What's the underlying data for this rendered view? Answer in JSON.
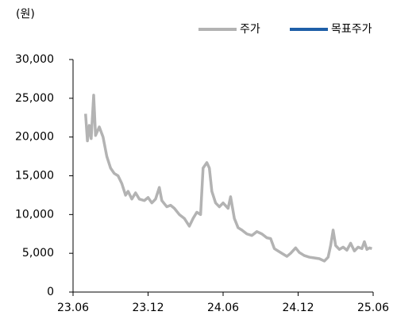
{
  "chart_data": {
    "type": "line",
    "unit_label": "(원)",
    "x": [
      1,
      1.15,
      1.3,
      1.45,
      1.65,
      1.8,
      2.1,
      2.4,
      2.7,
      3.0,
      3.3,
      3.6,
      3.9,
      4.2,
      4.4,
      4.7,
      5.0,
      5.3,
      5.7,
      6.0,
      6.3,
      6.6,
      6.9,
      7.1,
      7.5,
      7.8,
      8.1,
      8.5,
      8.9,
      9.3,
      9.6,
      9.9,
      10.2,
      10.4,
      10.7,
      10.9,
      11.1,
      11.4,
      11.7,
      12.0,
      12.4,
      12.6,
      12.9,
      13.2,
      13.5,
      13.9,
      14.3,
      14.7,
      15.1,
      15.5,
      15.8,
      16.1,
      16.5,
      16.9,
      17.1,
      17.4,
      17.8,
      18.1,
      18.5,
      18.9,
      19.3,
      19.7,
      20.1,
      20.4,
      20.6,
      20.8,
      21.0,
      21.3,
      21.6,
      21.9,
      22.2,
      22.5,
      22.8,
      23.1,
      23.3,
      23.5,
      23.7,
      23.9
    ],
    "series": [
      {
        "name": "주가",
        "color": "#b3b3b3",
        "values": [
          23000,
          19500,
          21500,
          19800,
          25400,
          20200,
          21300,
          20000,
          17500,
          16000,
          15300,
          15000,
          14000,
          12500,
          13000,
          12000,
          12800,
          12000,
          11800,
          12200,
          11500,
          12000,
          13500,
          11800,
          11000,
          11200,
          10800,
          10000,
          9500,
          8500,
          9500,
          10300,
          10000,
          16000,
          16700,
          16000,
          13000,
          11500,
          11000,
          11500,
          10800,
          12300,
          9500,
          8300,
          8000,
          7500,
          7300,
          7800,
          7500,
          7000,
          6900,
          5600,
          5200,
          4800,
          4600,
          5000,
          5700,
          5100,
          4700,
          4500,
          4400,
          4300,
          4000,
          4500,
          6000,
          8000,
          6000,
          5500,
          5800,
          5400,
          6300,
          5300,
          5800,
          5600,
          6500,
          5500,
          5700,
          5600
        ]
      },
      {
        "name": "목표주가",
        "color": "#1f5fa8",
        "values": [
          null,
          null,
          null,
          null,
          null,
          null,
          null,
          null,
          null,
          null,
          null,
          null,
          null,
          null,
          null,
          null,
          null,
          null,
          null,
          null,
          null,
          null,
          null,
          null,
          null,
          null,
          null,
          null,
          null,
          null,
          null,
          null,
          null,
          null,
          null,
          null,
          null,
          null,
          null,
          null,
          null,
          null,
          null,
          null,
          null,
          null,
          null,
          null,
          null,
          null,
          null,
          null,
          null,
          null,
          null,
          null,
          null,
          null,
          null,
          null,
          null,
          null,
          null,
          null,
          null,
          null,
          null,
          null,
          null,
          null,
          null,
          null,
          null,
          null,
          null,
          null,
          null,
          null
        ]
      }
    ],
    "xlim": [
      0,
      24
    ],
    "xticks": [
      {
        "value": 0,
        "label": "23.06"
      },
      {
        "value": 6,
        "label": "23.12"
      },
      {
        "value": 12,
        "label": "24.06"
      },
      {
        "value": 18,
        "label": "24.12"
      },
      {
        "value": 24,
        "label": "25.06"
      }
    ],
    "ylim": [
      0,
      30000
    ],
    "yticks": [
      0,
      {
        "value": 5000,
        "label": "5,000"
      },
      {
        "value": 10000,
        "label": "10,000"
      },
      {
        "value": 15000,
        "label": "15,000"
      },
      {
        "value": 20000,
        "label": "20,000"
      },
      {
        "value": 25000,
        "label": "25,000"
      },
      {
        "value": 30000,
        "label": "30,000"
      }
    ],
    "legend": "top-right"
  }
}
